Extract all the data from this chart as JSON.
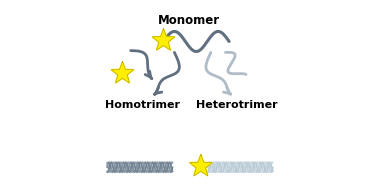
{
  "title": "Monomer",
  "label_left": "Homotrimer",
  "label_right": "Heterotrimer",
  "bg_color": "#ffffff",
  "title_fontsize": 8.5,
  "label_fontsize": 8,
  "dark_color": "#607080",
  "light_color": "#b0bcc8",
  "star_color": "#ffee00",
  "star_edge": "#b8a800",
  "star_size": 6.5,
  "helix_dark1": "#708090",
  "helix_dark2": "#8898a8",
  "helix_light1": "#b8c8d4",
  "helix_light2": "#c8d8e0"
}
